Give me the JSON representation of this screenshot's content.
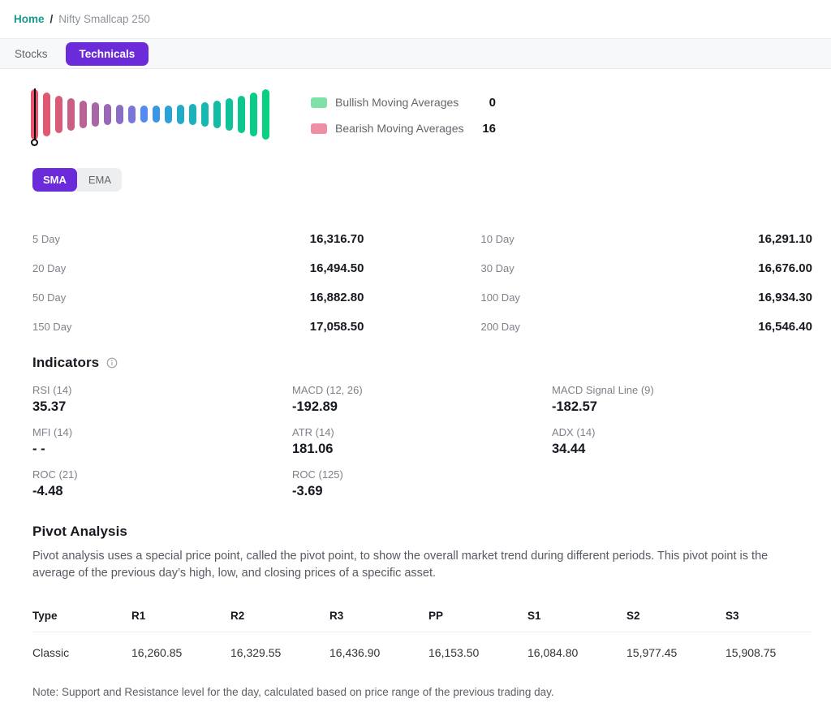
{
  "breadcrumb": {
    "home": "Home",
    "separator": "/",
    "current": "Nifty Smallcap 250"
  },
  "tabs": {
    "stocks": "Stocks",
    "technicals": "Technicals"
  },
  "gauge": {
    "needle_position": "far-left",
    "bar_colors": [
      "#e5566c",
      "#e15970",
      "#d85c78",
      "#ca5f85",
      "#ba6294",
      "#a966a4",
      "#9969b5",
      "#8a6ec6",
      "#7a76d8",
      "#548bf2",
      "#3a97e6",
      "#2ba2d6",
      "#22abc8",
      "#1cb2bb",
      "#17b8af",
      "#13bda4",
      "#10c299",
      "#0dc78f",
      "#0bcc87",
      "#0ad082"
    ],
    "legend": [
      {
        "label": "Bullish Moving Averages",
        "value": "0",
        "swatch": "#7de1a8"
      },
      {
        "label": "Bearish Moving Averages",
        "value": "16",
        "swatch": "#ef8fa4"
      }
    ]
  },
  "ma_toggle": {
    "sma": "SMA",
    "ema": "EMA"
  },
  "moving_averages": {
    "left": [
      {
        "label": "5 Day",
        "value": "16,316.70"
      },
      {
        "label": "20 Day",
        "value": "16,494.50"
      },
      {
        "label": "50 Day",
        "value": "16,882.80"
      },
      {
        "label": "150 Day",
        "value": "17,058.50"
      }
    ],
    "right": [
      {
        "label": "10 Day",
        "value": "16,291.10"
      },
      {
        "label": "30 Day",
        "value": "16,676.00"
      },
      {
        "label": "100 Day",
        "value": "16,934.30"
      },
      {
        "label": "200 Day",
        "value": "16,546.40"
      }
    ]
  },
  "indicators": {
    "title": "Indicators",
    "items": [
      {
        "label": "RSI (14)",
        "value": "35.37"
      },
      {
        "label": "MACD (12, 26)",
        "value": "-192.89"
      },
      {
        "label": "MACD Signal Line (9)",
        "value": "-182.57"
      },
      {
        "label": "MFI (14)",
        "value": "- -"
      },
      {
        "label": "ATR (14)",
        "value": "181.06"
      },
      {
        "label": "ADX (14)",
        "value": "34.44"
      },
      {
        "label": "ROC (21)",
        "value": "-4.48"
      },
      {
        "label": "ROC (125)",
        "value": "-3.69"
      }
    ]
  },
  "pivot": {
    "title": "Pivot Analysis",
    "description": "Pivot analysis uses a special price point, called the pivot point, to show the overall market trend during different periods. This pivot point is the average of the previous day’s high, low, and closing prices of a specific asset.",
    "table": {
      "headers": [
        "Type",
        "R1",
        "R2",
        "R3",
        "PP",
        "S1",
        "S2",
        "S3"
      ],
      "rows": [
        [
          "Classic",
          "16,260.85",
          "16,329.55",
          "16,436.90",
          "16,153.50",
          "16,084.80",
          "15,977.45",
          "15,908.75"
        ]
      ]
    },
    "note": "Note: Support and Resistance level for the day, calculated based on price range of the previous trading day."
  },
  "colors": {
    "accent_purple": "#6b2bd9",
    "link_teal": "#17998b",
    "bullish_green": "#7de1a8",
    "bearish_pink": "#ef8fa4"
  }
}
